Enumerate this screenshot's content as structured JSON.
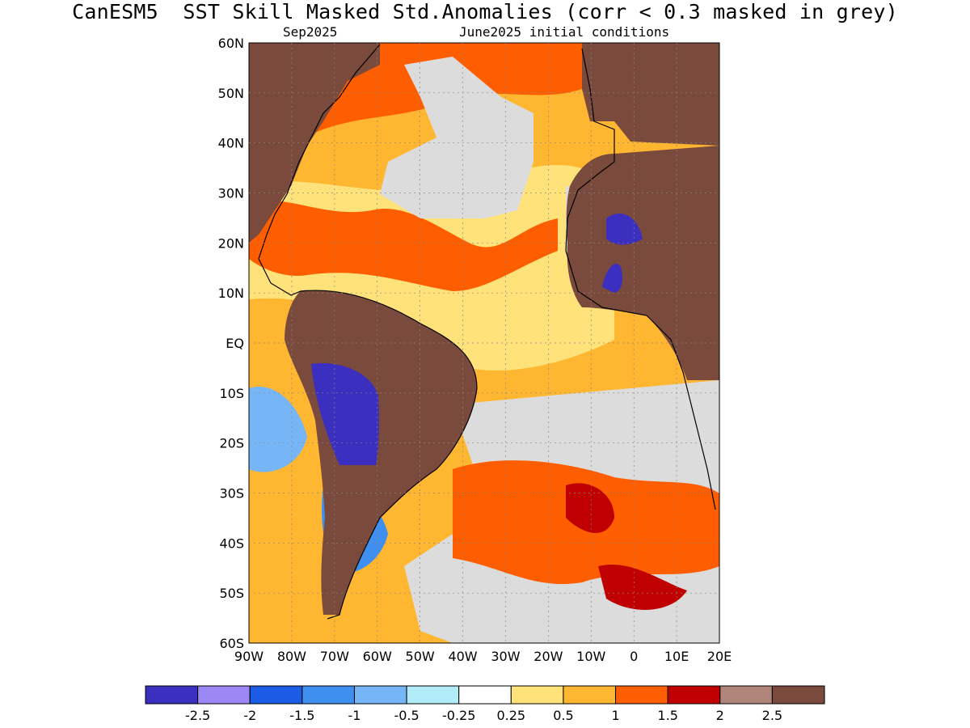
{
  "title": "CanESM5  SST Skill Masked Std.Anomalies (corr < 0.3 masked in grey)",
  "subtitle_left": "Sep2025",
  "subtitle_right": "June2025 initial conditions",
  "map": {
    "lon_range": [
      -90,
      20
    ],
    "lat_range": [
      -60,
      60
    ],
    "lat_labels": [
      "60N",
      "50N",
      "40N",
      "30N",
      "20N",
      "10N",
      "EQ",
      "10S",
      "20S",
      "30S",
      "40S",
      "50S",
      "60S"
    ],
    "lon_labels": [
      "90W",
      "80W",
      "70W",
      "60W",
      "50W",
      "40W",
      "30W",
      "20W",
      "10W",
      "0",
      "10E",
      "20E"
    ],
    "colors": {
      "land": "#7a4a3c",
      "mask": "#dcdcdc",
      "ocean_light": "#ffe27a",
      "ocean_orange": "#ffb630",
      "ocean_deep_orange": "#ff5e00",
      "ocean_red": "#c00000",
      "ocean_blue": "#3a2fbf"
    }
  },
  "colorbar": {
    "colors": [
      "#3a2fbf",
      "#9c88f5",
      "#1b5ce6",
      "#3f8ff0",
      "#76b6f6",
      "#b2ecf8",
      "#ffffff",
      "#ffe27a",
      "#ffb630",
      "#ff5e00",
      "#c00000",
      "#b0847a",
      "#7a4a3c"
    ],
    "labels": [
      "-2.5",
      "-2",
      "-1.5",
      "-1",
      "-0.5",
      "-0.25",
      "0.25",
      "0.5",
      "1",
      "1.5",
      "2",
      "2.5"
    ]
  }
}
